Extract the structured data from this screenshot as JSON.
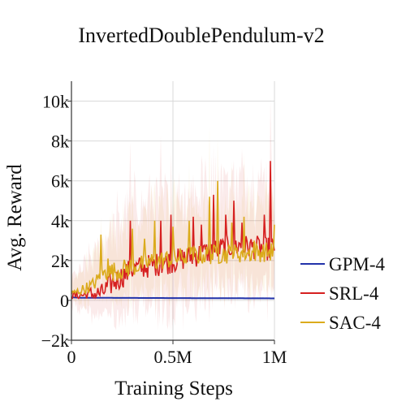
{
  "chart_data": {
    "type": "line",
    "title": "InvertedDoublePendulum-v2",
    "xlabel": "Training Steps",
    "ylabel": "Avg. Reward",
    "xlim": [
      0,
      1000000
    ],
    "ylim": [
      -2000,
      11000
    ],
    "x_ticks": [
      {
        "value": 0,
        "label": "0"
      },
      {
        "value": 500000,
        "label": "0.5M"
      },
      {
        "value": 1000000,
        "label": "1M"
      }
    ],
    "y_ticks": [
      {
        "value": -2000,
        "label": "−2k"
      },
      {
        "value": 0,
        "label": "0"
      },
      {
        "value": 2000,
        "label": "2k"
      },
      {
        "value": 4000,
        "label": "4k"
      },
      {
        "value": 6000,
        "label": "6k"
      },
      {
        "value": 8000,
        "label": "8k"
      },
      {
        "value": 10000,
        "label": "10k"
      }
    ],
    "grid": true,
    "legend_position": "right",
    "x_step": 5000,
    "series": [
      {
        "name": "GPM-4",
        "color": "#2233aa",
        "keypoints": [
          [
            0,
            150
          ],
          [
            50000,
            130
          ],
          [
            1000000,
            100
          ]
        ],
        "band": 60,
        "noise": 0
      },
      {
        "name": "SRL-4",
        "color": "#d62020",
        "keypoints": [
          [
            0,
            200
          ],
          [
            150000,
            300
          ],
          [
            200000,
            800
          ],
          [
            300000,
            1500
          ],
          [
            500000,
            1900
          ],
          [
            650000,
            2300
          ],
          [
            800000,
            2700
          ],
          [
            1000000,
            2500
          ]
        ],
        "peaks": [
          [
            290000,
            4000
          ],
          [
            440000,
            4000
          ],
          [
            490000,
            4300
          ],
          [
            600000,
            4200
          ],
          [
            640000,
            3800
          ],
          [
            700000,
            5300
          ],
          [
            760000,
            4300
          ],
          [
            800000,
            5000
          ],
          [
            840000,
            3900
          ],
          [
            950000,
            4300
          ],
          [
            980000,
            7000
          ],
          [
            1000000,
            2500
          ]
        ],
        "band": 4000,
        "noise": 1200
      },
      {
        "name": "SAC-4",
        "color": "#dbab1c",
        "keypoints": [
          [
            0,
            300
          ],
          [
            100000,
            700
          ],
          [
            160000,
            1300
          ],
          [
            250000,
            1500
          ],
          [
            400000,
            1900
          ],
          [
            600000,
            2200
          ],
          [
            800000,
            2300
          ],
          [
            1000000,
            2400
          ]
        ],
        "peaks": [
          [
            145000,
            3300
          ],
          [
            180000,
            2100
          ],
          [
            300000,
            3600
          ],
          [
            360000,
            3100
          ],
          [
            410000,
            4000
          ],
          [
            500000,
            3700
          ],
          [
            580000,
            4000
          ],
          [
            680000,
            5200
          ],
          [
            720000,
            6000
          ],
          [
            790000,
            3900
          ],
          [
            850000,
            4200
          ],
          [
            900000,
            3000
          ],
          [
            1000000,
            3800
          ]
        ],
        "band": 3000,
        "noise": 1000
      }
    ]
  }
}
